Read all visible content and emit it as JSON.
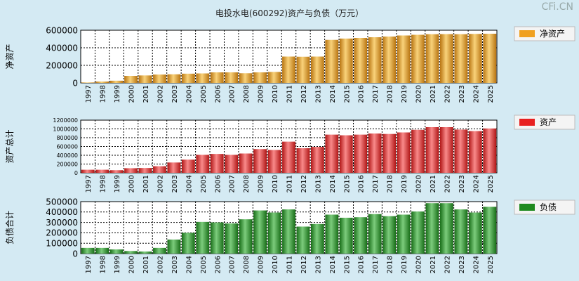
{
  "title": "电投水电(600292)资产与负债（万元）",
  "watermark": "CFi.CN",
  "colors": {
    "background": "#d4eaf3",
    "net_assets": "#f0a020",
    "assets": "#e82020",
    "liabilities": "#1f8a1f"
  },
  "chart_data": [
    {
      "type": "bar",
      "ylabel": "净资产",
      "legend": "净资产",
      "legend_position": "right",
      "grid": true,
      "ylim": [
        0,
        600000
      ],
      "yticks": [
        "0",
        "200000",
        "400000",
        "600000"
      ],
      "categories": [
        "1997",
        "1998",
        "1999",
        "2000",
        "2001",
        "2002",
        "2003",
        "2004",
        "2005",
        "2006",
        "2007",
        "2008",
        "2009",
        "2010",
        "2011",
        "2012",
        "2013",
        "2014",
        "2015",
        "2016",
        "2017",
        "2018",
        "2019",
        "2020",
        "2021",
        "2022",
        "2023",
        "2024",
        "2025"
      ],
      "values": [
        5000,
        15000,
        25000,
        80000,
        85000,
        95000,
        98000,
        105000,
        108000,
        120000,
        120000,
        110000,
        120000,
        125000,
        300000,
        298000,
        300000,
        490000,
        505000,
        512000,
        520000,
        528000,
        540000,
        548000,
        555000,
        556000,
        555000,
        558000,
        560000
      ]
    },
    {
      "type": "bar",
      "ylabel": "资产总计",
      "legend": "资产",
      "legend_position": "right",
      "grid": true,
      "ylim": [
        0,
        1200000
      ],
      "yticks": [
        "0",
        "200000",
        "400000",
        "600000",
        "800000",
        "1000000",
        "1200000"
      ],
      "categories": [
        "1997",
        "1998",
        "1999",
        "2000",
        "2001",
        "2002",
        "2003",
        "2004",
        "2005",
        "2006",
        "2007",
        "2008",
        "2009",
        "2010",
        "2011",
        "2012",
        "2013",
        "2014",
        "2015",
        "2016",
        "2017",
        "2018",
        "2019",
        "2020",
        "2021",
        "2022",
        "2023",
        "2024",
        "2025"
      ],
      "values": [
        70000,
        70000,
        60000,
        105000,
        110000,
        150000,
        235000,
        300000,
        410000,
        430000,
        410000,
        440000,
        540000,
        520000,
        710000,
        560000,
        590000,
        870000,
        855000,
        870000,
        895000,
        885000,
        920000,
        980000,
        1040000,
        1040000,
        985000,
        950000,
        1010000
      ]
    },
    {
      "type": "bar",
      "ylabel": "负债合计",
      "legend": "负债",
      "legend_position": "right",
      "grid": true,
      "ylim": [
        0,
        500000
      ],
      "yticks": [
        "0",
        "100000",
        "200000",
        "300000",
        "400000",
        "500000"
      ],
      "categories": [
        "1997",
        "1998",
        "1999",
        "2000",
        "2001",
        "2002",
        "2003",
        "2004",
        "2005",
        "2006",
        "2007",
        "2008",
        "2009",
        "2010",
        "2011",
        "2012",
        "2013",
        "2014",
        "2015",
        "2016",
        "2017",
        "2018",
        "2019",
        "2020",
        "2021",
        "2022",
        "2023",
        "2024",
        "2025"
      ],
      "values": [
        55000,
        55000,
        40000,
        25000,
        20000,
        55000,
        135000,
        200000,
        305000,
        300000,
        290000,
        330000,
        415000,
        395000,
        425000,
        260000,
        285000,
        375000,
        345000,
        350000,
        380000,
        360000,
        375000,
        405000,
        485000,
        485000,
        425000,
        395000,
        450000
      ]
    }
  ]
}
